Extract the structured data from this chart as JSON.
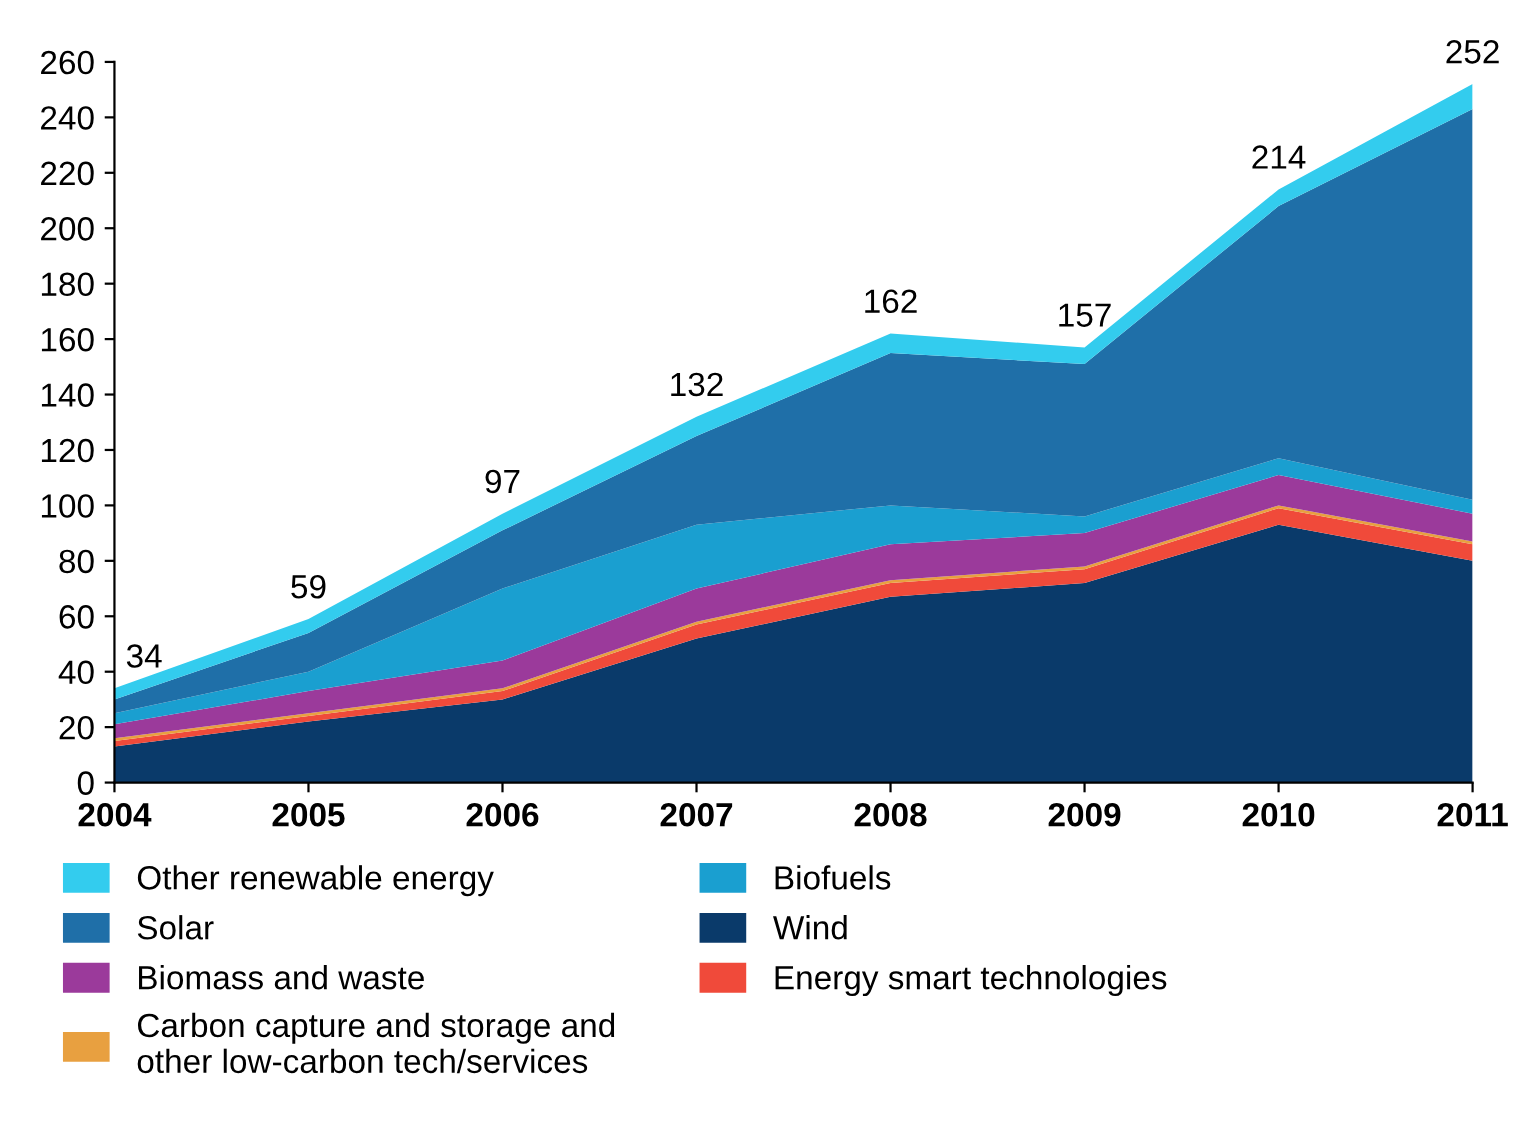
{
  "chart_data": {
    "type": "area",
    "stacked": true,
    "x": [
      2004,
      2005,
      2006,
      2007,
      2008,
      2009,
      2010,
      2011
    ],
    "xlim": [
      2004,
      2011
    ],
    "xticks": [
      2004,
      2005,
      2006,
      2007,
      2008,
      2009,
      2010,
      2011
    ],
    "ylim": [
      0,
      260
    ],
    "yticks": [
      0,
      20,
      40,
      60,
      80,
      100,
      120,
      140,
      160,
      180,
      200,
      220,
      240,
      260
    ],
    "grid": false,
    "legend": "bottom",
    "series": [
      {
        "name": "Wind",
        "color": "#0a3a6a",
        "values": [
          13,
          22,
          30,
          52,
          67,
          72,
          93,
          80
        ]
      },
      {
        "name": "Energy smart technologies",
        "color": "#f04a3a",
        "values": [
          2,
          2,
          3,
          5,
          5,
          5,
          6,
          6
        ]
      },
      {
        "name": "Carbon capture and storage and\nother low-carbon tech/services",
        "color": "#e8a040",
        "values": [
          1,
          1,
          1,
          1,
          1,
          1,
          1,
          1
        ]
      },
      {
        "name": "Biomass and waste",
        "color": "#9b3a9b",
        "values": [
          5,
          8,
          10,
          12,
          13,
          12,
          11,
          10
        ]
      },
      {
        "name": "Biofuels",
        "color": "#1a9fd0",
        "values": [
          4,
          7,
          26,
          23,
          14,
          6,
          6,
          5
        ]
      },
      {
        "name": "Solar",
        "color": "#1f6fa8",
        "values": [
          5,
          14,
          21,
          32,
          55,
          55,
          91,
          141
        ]
      },
      {
        "name": "Other renewable energy",
        "color": "#33ccee",
        "values": [
          4,
          5,
          6,
          7,
          7,
          6,
          6,
          9
        ]
      }
    ],
    "annotations": [
      {
        "text": "34",
        "x": 2004,
        "y": 34
      },
      {
        "text": "59",
        "x": 2005,
        "y": 59
      },
      {
        "text": "97",
        "x": 2006,
        "y": 97
      },
      {
        "text": "132",
        "x": 2007,
        "y": 132
      },
      {
        "text": "162",
        "x": 2008,
        "y": 162
      },
      {
        "text": "157",
        "x": 2009,
        "y": 157
      },
      {
        "text": "214",
        "x": 2010,
        "y": 214
      },
      {
        "text": "252",
        "x": 2011,
        "y": 252
      }
    ]
  }
}
